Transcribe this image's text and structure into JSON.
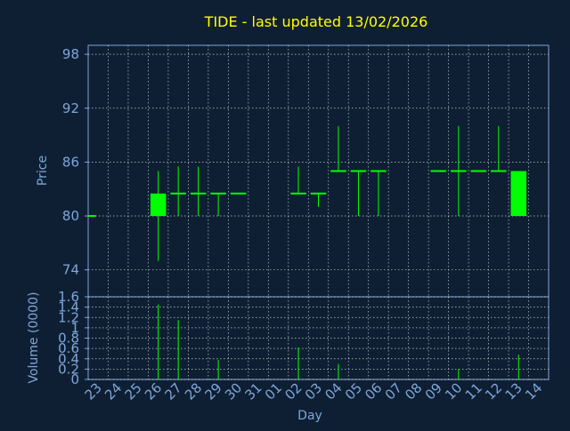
{
  "title": "TIDE - last updated 13/02/2026",
  "colors": {
    "background": "#0f1f33",
    "title": "#ffff00",
    "axis": "#7ea6d8",
    "grid": "#ffffff",
    "candle": "#00ff00"
  },
  "chart_data": [
    {
      "type": "candlestick",
      "ylabel": "Price",
      "ylim": [
        71,
        99
      ],
      "yticks": [
        74,
        80,
        86,
        92,
        98
      ],
      "grid": true,
      "categories": [
        "23",
        "24",
        "25",
        "26",
        "27",
        "28",
        "29",
        "30",
        "31",
        "01",
        "02",
        "03",
        "04",
        "05",
        "06",
        "07",
        "08",
        "09",
        "10",
        "11",
        "12",
        "13",
        "14"
      ],
      "candles": [
        {
          "x": "23",
          "open": 80,
          "high": 80,
          "low": 80,
          "close": 80
        },
        {
          "x": "26",
          "open": 80,
          "high": 85,
          "low": 75,
          "close": 82.5
        },
        {
          "x": "27",
          "open": 82.5,
          "high": 85.5,
          "low": 80,
          "close": 82.5
        },
        {
          "x": "28",
          "open": 82.5,
          "high": 85.5,
          "low": 80,
          "close": 82.5
        },
        {
          "x": "29",
          "open": 82.5,
          "high": 82.5,
          "low": 80,
          "close": 82.5
        },
        {
          "x": "30",
          "open": 82.5,
          "high": 82.5,
          "low": 82.5,
          "close": 82.5
        },
        {
          "x": "02",
          "open": 82.5,
          "high": 85.5,
          "low": 82.5,
          "close": 82.5
        },
        {
          "x": "03",
          "open": 82.5,
          "high": 82.5,
          "low": 81,
          "close": 82.5
        },
        {
          "x": "04",
          "open": 85,
          "high": 90,
          "low": 85,
          "close": 85
        },
        {
          "x": "05",
          "open": 85,
          "high": 85,
          "low": 80,
          "close": 85
        },
        {
          "x": "06",
          "open": 85,
          "high": 85,
          "low": 80,
          "close": 85
        },
        {
          "x": "09",
          "open": 85,
          "high": 85,
          "low": 85,
          "close": 85
        },
        {
          "x": "10",
          "open": 85,
          "high": 90,
          "low": 80,
          "close": 85
        },
        {
          "x": "11",
          "open": 85,
          "high": 85,
          "low": 85,
          "close": 85
        },
        {
          "x": "12",
          "open": 85,
          "high": 90,
          "low": 85,
          "close": 85
        },
        {
          "x": "13",
          "open": 80,
          "high": 85,
          "low": 80,
          "close": 85
        }
      ]
    },
    {
      "type": "bar",
      "xlabel": "Day",
      "ylabel": "Volume (0000)",
      "ylim": [
        0,
        1.6
      ],
      "yticks": [
        0,
        0.2,
        0.4,
        0.6,
        0.8,
        1,
        1.2,
        1.4,
        1.6
      ],
      "grid": true,
      "categories": [
        "23",
        "24",
        "25",
        "26",
        "27",
        "28",
        "29",
        "30",
        "31",
        "01",
        "02",
        "03",
        "04",
        "05",
        "06",
        "07",
        "08",
        "09",
        "10",
        "11",
        "12",
        "13",
        "14"
      ],
      "bars": [
        {
          "x": "26",
          "value": 1.45
        },
        {
          "x": "27",
          "value": 1.15
        },
        {
          "x": "29",
          "value": 0.38
        },
        {
          "x": "02",
          "value": 0.62
        },
        {
          "x": "04",
          "value": 0.3
        },
        {
          "x": "10",
          "value": 0.2
        },
        {
          "x": "13",
          "value": 0.48
        }
      ]
    }
  ]
}
